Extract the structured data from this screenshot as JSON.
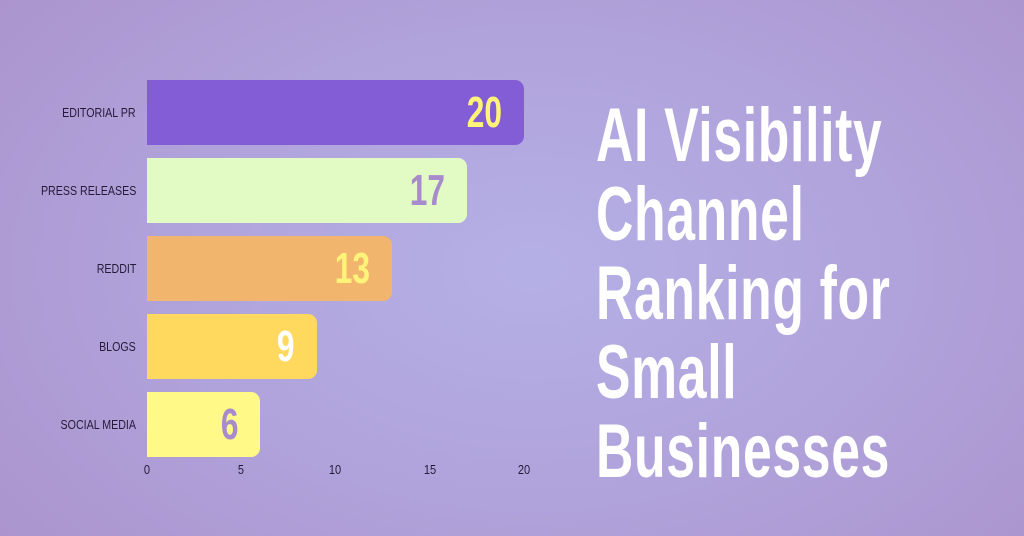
{
  "title": {
    "lines": [
      "AI Visibility",
      "Channel",
      "Ranking for",
      "Small",
      "Businesses"
    ],
    "text": "AI Visibility Channel Ranking for Small Businesses",
    "color": "#ffffff"
  },
  "background": {
    "center_color": "#b4b0e6",
    "edge_color": "#ab93cd"
  },
  "chart_data": {
    "type": "bar",
    "orientation": "horizontal",
    "title": "AI Visibility Channel Ranking for Small Businesses",
    "categories": [
      "EDITORIAL PR",
      "PRESS RELEASES",
      "REDDIT",
      "BLOGS",
      "SOCIAL MEDIA"
    ],
    "values": [
      20,
      17,
      13,
      9,
      6
    ],
    "xlabel": "",
    "ylabel": "",
    "xlim": [
      0,
      20
    ],
    "x_ticks": [
      0,
      5,
      10,
      15,
      20
    ],
    "grid": false,
    "legend": null,
    "data_labels": true,
    "bar_colors": [
      "#825dd6",
      "#e2fbc5",
      "#f2b56d",
      "#ffd95e",
      "#fffa87"
    ],
    "label_colors": [
      "#fff37a",
      "#a78bcc",
      "#fff37a",
      "#ffffff",
      "#a78bcc"
    ]
  },
  "axis": {
    "ticks": [
      "0",
      "5",
      "10",
      "15",
      "20"
    ]
  },
  "bars": [
    {
      "label": "EDITORIAL PR",
      "value": "20",
      "color": "#825dd6",
      "value_color": "#fff37a"
    },
    {
      "label": "PRESS RELEASES",
      "value": "17",
      "color": "#e2fbc5",
      "value_color": "#a78bcc"
    },
    {
      "label": "REDDIT",
      "value": "13",
      "color": "#f2b56d",
      "value_color": "#fff37a"
    },
    {
      "label": "BLOGS",
      "value": "9",
      "color": "#ffd95e",
      "value_color": "#ffffff"
    },
    {
      "label": "SOCIAL MEDIA",
      "value": "6",
      "color": "#fffa87",
      "value_color": "#a78bcc"
    }
  ]
}
